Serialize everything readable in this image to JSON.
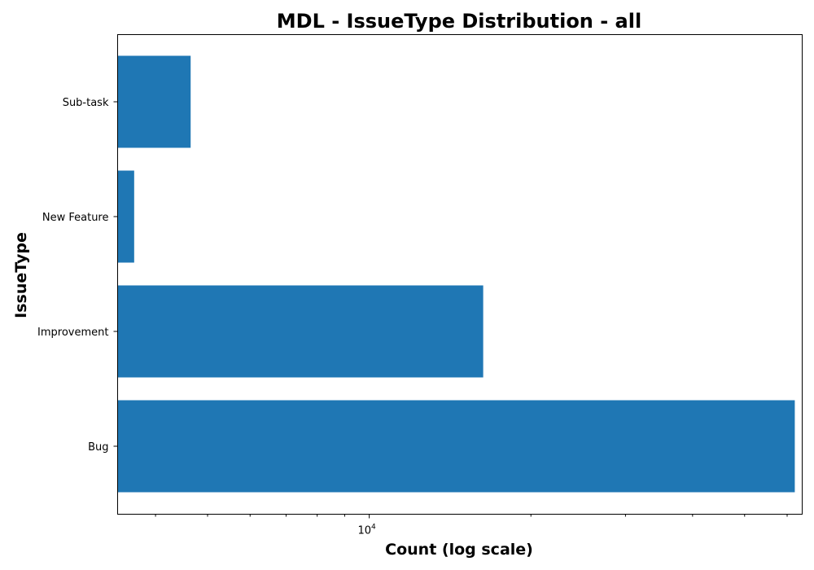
{
  "chart_data": {
    "type": "bar",
    "orientation": "horizontal",
    "title": "MDL - IssueType Distribution - all",
    "xlabel": "Count (log scale)",
    "ylabel": "IssueType",
    "xscale": "log",
    "xlim": [
      3400,
      64000
    ],
    "x_ticks": [
      {
        "value": 10000,
        "base": "10",
        "exp": "4"
      }
    ],
    "categories": [
      "Bug",
      "Improvement",
      "New Feature",
      "Sub-task"
    ],
    "values": [
      62000,
      16300,
      3650,
      4650
    ],
    "color": "#1f77b4",
    "grid": false
  }
}
